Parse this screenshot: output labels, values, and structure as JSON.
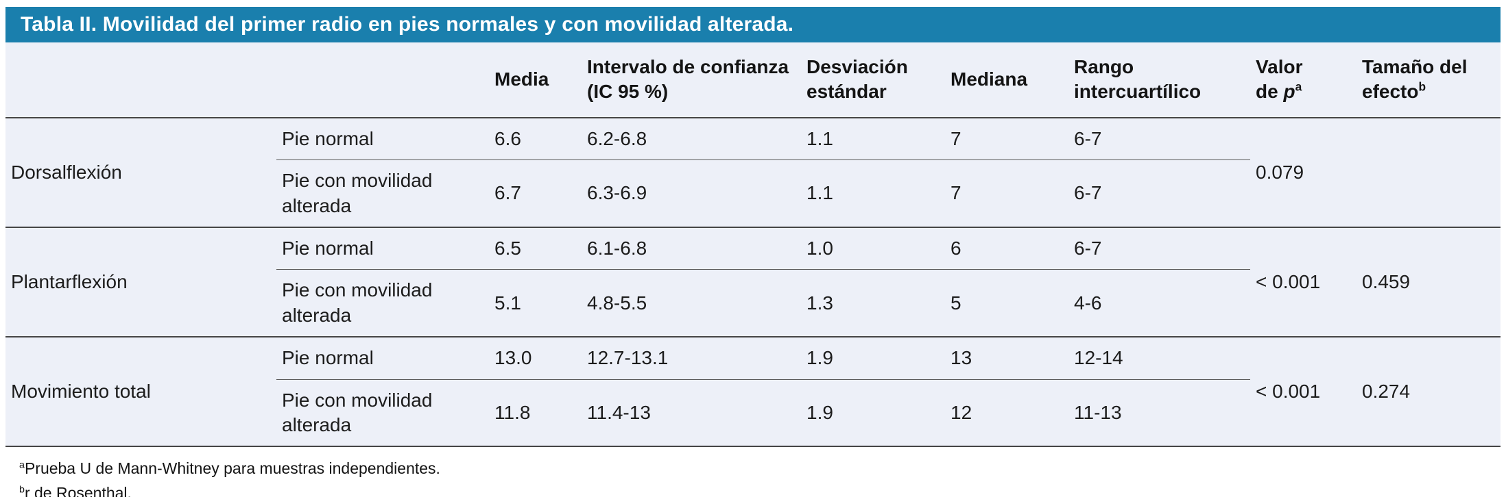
{
  "table": {
    "title": "Tabla II. Movilidad del primer radio en pies normales y con movilidad alterada.",
    "columns": {
      "media": "Media",
      "ic": "Intervalo de confianza (IC 95 %)",
      "sd": "Desviación estándar",
      "mediana": "Mediana",
      "riq": "Rango intercuartílico",
      "p": {
        "line1": "Valor",
        "line2_prefix": "de ",
        "symbol": "p",
        "sup": "a"
      },
      "effect": {
        "text": "Tamaño del efecto",
        "sup": "b"
      }
    },
    "sections": [
      {
        "name": "Dorsalflexión",
        "rows": [
          {
            "label": "Pie normal",
            "media": "6.6",
            "ic": "6.2-6.8",
            "sd": "1.1",
            "mediana": "7",
            "riq": "6-7"
          },
          {
            "label": "Pie con movilidad alterada",
            "media": "6.7",
            "ic": "6.3-6.9",
            "sd": "1.1",
            "mediana": "7",
            "riq": "6-7"
          }
        ],
        "p_value": "0.079",
        "effect_size": ""
      },
      {
        "name": "Plantarflexión",
        "rows": [
          {
            "label": "Pie normal",
            "media": "6.5",
            "ic": "6.1-6.8",
            "sd": "1.0",
            "mediana": "6",
            "riq": "6-7"
          },
          {
            "label": "Pie con movilidad alterada",
            "media": "5.1",
            "ic": "4.8-5.5",
            "sd": "1.3",
            "mediana": "5",
            "riq": "4-6"
          }
        ],
        "p_value": "< 0.001",
        "effect_size": "0.459"
      },
      {
        "name": "Movimiento total",
        "rows": [
          {
            "label": "Pie normal",
            "media": "13.0",
            "ic": "12.7-13.1",
            "sd": "1.9",
            "mediana": "13",
            "riq": "12-14"
          },
          {
            "label": "Pie con movilidad alterada",
            "media": "11.8",
            "ic": "11.4-13",
            "sd": "1.9",
            "mediana": "12",
            "riq": "11-13"
          }
        ],
        "p_value": "< 0.001",
        "effect_size": "0.274"
      }
    ],
    "footnotes": [
      {
        "sup": "a",
        "text": "Prueba U de Mann-Whitney para muestras independientes."
      },
      {
        "sup": "b",
        "text": "r de Rosenthal."
      }
    ],
    "colors": {
      "title_bg": "#1a7fad",
      "title_text": "#ffffff",
      "body_bg": "#edf0f8",
      "border": "#454545"
    }
  }
}
